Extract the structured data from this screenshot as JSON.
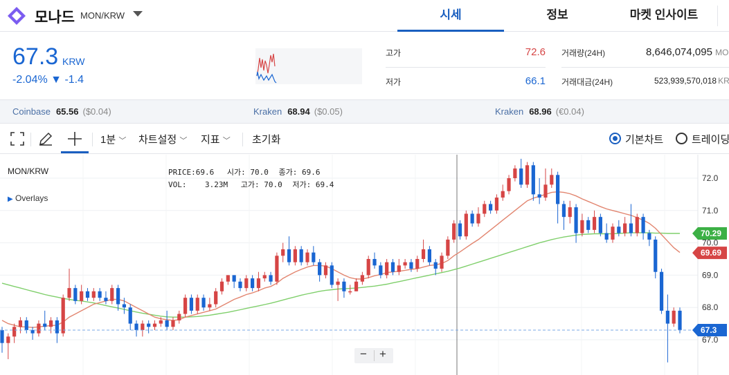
{
  "header": {
    "coin_name": "모나드",
    "pair": "MON/KRW",
    "tabs": [
      {
        "label": "시세",
        "active": true
      },
      {
        "label": "정보",
        "active": false
      },
      {
        "label": "마켓 인사이트",
        "active": false
      }
    ]
  },
  "price": {
    "current": "67.3",
    "unit": "KRW",
    "change_pct": "-2.04%",
    "change_arrow": "▼",
    "change_abs": "-1.4"
  },
  "stats": {
    "high_label": "고가",
    "high_value": "72.6",
    "low_label": "저가",
    "low_value": "66.1",
    "volume_label": "거래량(24H)",
    "volume_value": "8,646,074,095",
    "volume_unit": "MON",
    "amount_label": "거래대금(24H)",
    "amount_value": "523,939,570,018",
    "amount_unit": "KRW"
  },
  "exchanges": [
    {
      "name": "Coinbase",
      "price": "65.56",
      "change": "($0.04)"
    },
    {
      "name": "Kraken",
      "price": "68.94",
      "change": "($0.05)"
    },
    {
      "name": "Kraken",
      "price": "68.96",
      "change": "(€0.04)"
    }
  ],
  "toolbar": {
    "interval": "1분",
    "chart_settings": "차트설정",
    "indicators": "지표",
    "reset": "초기화",
    "basic_chart": "기본차트",
    "tradingview": "트레이딩"
  },
  "legend": {
    "symbol": "MON/KRW",
    "overlays": "Overlays",
    "price_label": "PRICE:",
    "price_val": "69.6",
    "open_label": "시가:",
    "open_val": "70.0",
    "close_label": "종가:",
    "close_val": "69.6",
    "vol_label": "VOL:",
    "vol_val": "3.23M",
    "high_label": "고가:",
    "high_val": "70.0",
    "low_label": "저가:",
    "low_val": "69.4"
  },
  "colors": {
    "up": "#d64545",
    "down": "#1a66d2",
    "ma_fast": "#e2856f",
    "ma_slow": "#7fcf6b"
  },
  "chart_data": {
    "type": "candlestick",
    "yticks": [
      67.0,
      68.0,
      69.0,
      70.0,
      71.0,
      72.0
    ],
    "ylim": [
      66.5,
      72.6
    ],
    "price_tags": [
      {
        "label": "70.29",
        "value": 70.29,
        "color": "#3cb045"
      },
      {
        "label": "69.69",
        "value": 69.69,
        "color": "#d64545"
      },
      {
        "label": "67.3",
        "value": 67.3,
        "color": "#1a66d2"
      }
    ],
    "last_price": 67.3,
    "candles": [
      [
        67.3,
        66.9,
        67.4,
        66.6
      ],
      [
        66.9,
        67.1,
        67.2,
        66.4
      ],
      [
        67.1,
        67.4,
        67.5,
        66.9
      ],
      [
        67.4,
        67.6,
        67.7,
        67.2
      ],
      [
        67.6,
        67.3,
        67.7,
        67.2
      ],
      [
        67.3,
        67.2,
        67.4,
        67.0
      ],
      [
        67.2,
        67.5,
        67.6,
        67.1
      ],
      [
        67.5,
        67.4,
        67.9,
        67.3
      ],
      [
        67.4,
        67.6,
        67.7,
        67.2
      ],
      [
        67.6,
        67.2,
        67.7,
        66.9
      ],
      [
        67.2,
        68.3,
        68.4,
        67.1
      ],
      [
        68.3,
        68.6,
        69.2,
        68.2
      ],
      [
        68.6,
        68.2,
        68.7,
        68.1
      ],
      [
        68.2,
        68.5,
        68.7,
        68.1
      ],
      [
        68.5,
        68.3,
        68.6,
        68.2
      ],
      [
        68.3,
        68.5,
        68.6,
        68.2
      ],
      [
        68.5,
        68.3,
        68.6,
        68.2
      ],
      [
        68.3,
        68.2,
        68.5,
        68.1
      ],
      [
        68.2,
        68.6,
        68.7,
        68.1
      ],
      [
        68.6,
        68.1,
        68.7,
        67.9
      ],
      [
        68.1,
        68.0,
        68.3,
        67.8
      ],
      [
        68.0,
        67.5,
        68.1,
        67.3
      ],
      [
        67.5,
        67.3,
        67.6,
        67.1
      ],
      [
        67.3,
        67.5,
        67.6,
        67.1
      ],
      [
        67.5,
        67.4,
        67.6,
        67.2
      ],
      [
        67.4,
        67.5,
        67.6,
        67.3
      ],
      [
        67.5,
        67.6,
        67.7,
        67.4
      ],
      [
        67.6,
        67.4,
        67.9,
        67.3
      ],
      [
        67.4,
        67.6,
        67.7,
        67.3
      ],
      [
        67.6,
        67.8,
        67.9,
        67.5
      ],
      [
        67.8,
        68.3,
        68.4,
        67.7
      ],
      [
        68.3,
        67.9,
        68.4,
        67.8
      ],
      [
        67.9,
        68.3,
        68.4,
        67.8
      ],
      [
        68.3,
        68.0,
        68.4,
        67.9
      ],
      [
        68.0,
        68.1,
        68.3,
        67.9
      ],
      [
        68.1,
        68.5,
        68.6,
        68.0
      ],
      [
        68.5,
        68.8,
        68.9,
        68.4
      ],
      [
        68.8,
        69.0,
        69.0,
        68.7
      ],
      [
        69.0,
        68.8,
        69.0,
        68.6
      ],
      [
        68.8,
        68.6,
        68.9,
        68.5
      ],
      [
        68.6,
        68.9,
        69.0,
        68.5
      ],
      [
        68.9,
        68.6,
        69.0,
        68.5
      ],
      [
        68.6,
        68.9,
        69.1,
        68.5
      ],
      [
        68.9,
        69.0,
        69.1,
        68.8
      ],
      [
        69.0,
        68.8,
        69.1,
        68.7
      ],
      [
        68.8,
        69.6,
        69.7,
        68.7
      ],
      [
        69.6,
        69.8,
        70.0,
        69.4
      ],
      [
        69.8,
        69.4,
        70.2,
        69.3
      ],
      [
        69.4,
        69.8,
        69.9,
        69.3
      ],
      [
        69.8,
        69.4,
        69.9,
        69.3
      ],
      [
        69.4,
        69.7,
        69.8,
        69.3
      ],
      [
        69.7,
        69.4,
        69.9,
        69.3
      ],
      [
        69.4,
        69.0,
        69.5,
        68.8
      ],
      [
        69.0,
        69.3,
        69.4,
        68.9
      ],
      [
        69.3,
        68.7,
        69.4,
        68.6
      ],
      [
        68.7,
        68.8,
        68.9,
        68.2
      ],
      [
        68.8,
        68.5,
        68.9,
        68.3
      ],
      [
        68.5,
        68.5,
        68.7,
        68.4
      ],
      [
        68.5,
        68.8,
        68.9,
        68.5
      ],
      [
        68.8,
        69.0,
        69.1,
        68.7
      ],
      [
        69.0,
        69.5,
        69.6,
        68.9
      ],
      [
        69.5,
        69.3,
        69.7,
        69.2
      ],
      [
        69.3,
        69.0,
        69.4,
        68.9
      ],
      [
        69.0,
        69.4,
        69.5,
        68.9
      ],
      [
        69.4,
        69.1,
        69.5,
        69.0
      ],
      [
        69.1,
        69.3,
        69.5,
        69.0
      ],
      [
        69.3,
        69.4,
        69.5,
        69.2
      ],
      [
        69.4,
        69.2,
        69.5,
        69.1
      ],
      [
        69.2,
        69.5,
        69.6,
        69.1
      ],
      [
        69.5,
        69.8,
        70.1,
        69.4
      ],
      [
        69.8,
        69.4,
        69.9,
        69.3
      ],
      [
        69.4,
        69.2,
        69.5,
        69.0
      ],
      [
        69.2,
        69.6,
        69.7,
        69.1
      ],
      [
        69.6,
        70.1,
        70.2,
        69.5
      ],
      [
        70.1,
        70.6,
        70.7,
        70.0
      ],
      [
        70.6,
        70.2,
        70.7,
        70.1
      ],
      [
        70.2,
        70.9,
        71.0,
        70.1
      ],
      [
        70.9,
        70.6,
        71.0,
        70.5
      ],
      [
        70.6,
        70.9,
        71.1,
        70.5
      ],
      [
        70.9,
        71.2,
        71.3,
        70.8
      ],
      [
        71.2,
        71.0,
        71.3,
        70.9
      ],
      [
        71.0,
        71.4,
        71.5,
        70.9
      ],
      [
        71.4,
        71.6,
        71.8,
        71.3
      ],
      [
        71.6,
        72.0,
        72.1,
        71.5
      ],
      [
        72.0,
        72.3,
        72.4,
        71.9
      ],
      [
        72.3,
        71.8,
        72.6,
        71.7
      ],
      [
        71.8,
        72.4,
        72.5,
        71.7
      ],
      [
        72.4,
        71.5,
        72.5,
        71.3
      ],
      [
        71.5,
        71.4,
        72.0,
        71.2
      ],
      [
        71.4,
        71.8,
        72.3,
        71.3
      ],
      [
        71.8,
        72.1,
        72.3,
        71.7
      ],
      [
        72.1,
        71.2,
        72.2,
        70.6
      ],
      [
        71.2,
        70.8,
        71.3,
        70.4
      ],
      [
        70.8,
        71.1,
        71.3,
        70.6
      ],
      [
        71.1,
        70.3,
        71.2,
        70.0
      ],
      [
        70.3,
        70.7,
        70.9,
        70.2
      ],
      [
        70.7,
        70.4,
        70.8,
        70.3
      ],
      [
        70.4,
        70.8,
        71.0,
        70.3
      ],
      [
        70.8,
        70.3,
        70.9,
        70.2
      ],
      [
        70.3,
        70.1,
        70.6,
        70.0
      ],
      [
        70.1,
        70.5,
        70.6,
        70.0
      ],
      [
        70.5,
        70.3,
        70.7,
        70.2
      ],
      [
        70.3,
        70.6,
        70.8,
        70.2
      ],
      [
        70.6,
        70.3,
        71.2,
        70.2
      ],
      [
        70.3,
        70.8,
        70.9,
        70.2
      ],
      [
        70.8,
        70.3,
        70.9,
        70.1
      ],
      [
        70.3,
        70.1,
        70.4,
        69.9
      ],
      [
        70.1,
        69.1,
        70.2,
        68.9
      ],
      [
        69.1,
        67.9,
        69.2,
        67.8
      ],
      [
        67.9,
        67.5,
        68.4,
        66.3
      ],
      [
        67.5,
        67.9,
        68.0,
        67.4
      ],
      [
        67.9,
        67.3,
        68.0,
        67.2
      ]
    ],
    "ma_fast": [
      67.6,
      67.5,
      67.45,
      67.4,
      67.4,
      67.38,
      67.4,
      67.42,
      67.44,
      67.45,
      67.55,
      67.7,
      67.8,
      67.9,
      68.0,
      68.1,
      68.15,
      68.2,
      68.25,
      68.25,
      68.2,
      68.1,
      68.0,
      67.9,
      67.8,
      67.7,
      67.65,
      67.62,
      67.6,
      67.62,
      67.7,
      67.75,
      67.8,
      67.85,
      67.9,
      67.95,
      68.05,
      68.15,
      68.25,
      68.32,
      68.4,
      68.45,
      68.52,
      68.6,
      68.65,
      68.75,
      68.9,
      69.0,
      69.1,
      69.18,
      69.25,
      69.3,
      69.3,
      69.28,
      69.2,
      69.1,
      69.0,
      68.92,
      68.88,
      68.88,
      68.92,
      68.98,
      69.02,
      69.08,
      69.1,
      69.12,
      69.15,
      69.18,
      69.2,
      69.25,
      69.3,
      69.32,
      69.36,
      69.45,
      69.6,
      69.72,
      69.85,
      69.98,
      70.1,
      70.25,
      70.4,
      70.55,
      70.7,
      70.85,
      71.0,
      71.15,
      71.3,
      71.38,
      71.44,
      71.5,
      71.56,
      71.58,
      71.56,
      71.52,
      71.45,
      71.36,
      71.28,
      71.2,
      71.12,
      71.05,
      71.0,
      70.95,
      70.9,
      70.85,
      70.78,
      70.7,
      70.6,
      70.45,
      70.25,
      70.05,
      69.85,
      69.7
    ],
    "ma_slow": [
      68.75,
      68.7,
      68.65,
      68.6,
      68.55,
      68.5,
      68.45,
      68.4,
      68.36,
      68.32,
      68.28,
      68.25,
      68.22,
      68.2,
      68.17,
      68.14,
      68.1,
      68.06,
      68.02,
      67.98,
      67.94,
      67.9,
      67.86,
      67.82,
      67.79,
      67.76,
      67.73,
      67.71,
      67.7,
      67.7,
      67.7,
      67.71,
      67.72,
      67.74,
      67.76,
      67.79,
      67.82,
      67.85,
      67.89,
      67.93,
      67.97,
      68.01,
      68.05,
      68.09,
      68.13,
      68.18,
      68.23,
      68.28,
      68.33,
      68.38,
      68.42,
      68.46,
      68.5,
      68.53,
      68.55,
      68.57,
      68.58,
      68.59,
      68.6,
      68.62,
      68.64,
      68.66,
      68.69,
      68.72,
      68.76,
      68.8,
      68.84,
      68.88,
      68.92,
      68.96,
      69.0,
      69.04,
      69.08,
      69.12,
      69.17,
      69.22,
      69.28,
      69.34,
      69.4,
      69.46,
      69.52,
      69.58,
      69.64,
      69.7,
      69.76,
      69.82,
      69.88,
      69.94,
      70.0,
      70.05,
      70.1,
      70.14,
      70.18,
      70.21,
      70.24,
      70.26,
      70.27,
      70.28,
      70.28,
      70.28,
      70.28,
      70.29,
      70.3,
      70.31,
      70.31,
      70.31,
      70.31,
      70.3,
      70.3,
      70.29,
      70.29,
      70.29
    ]
  }
}
